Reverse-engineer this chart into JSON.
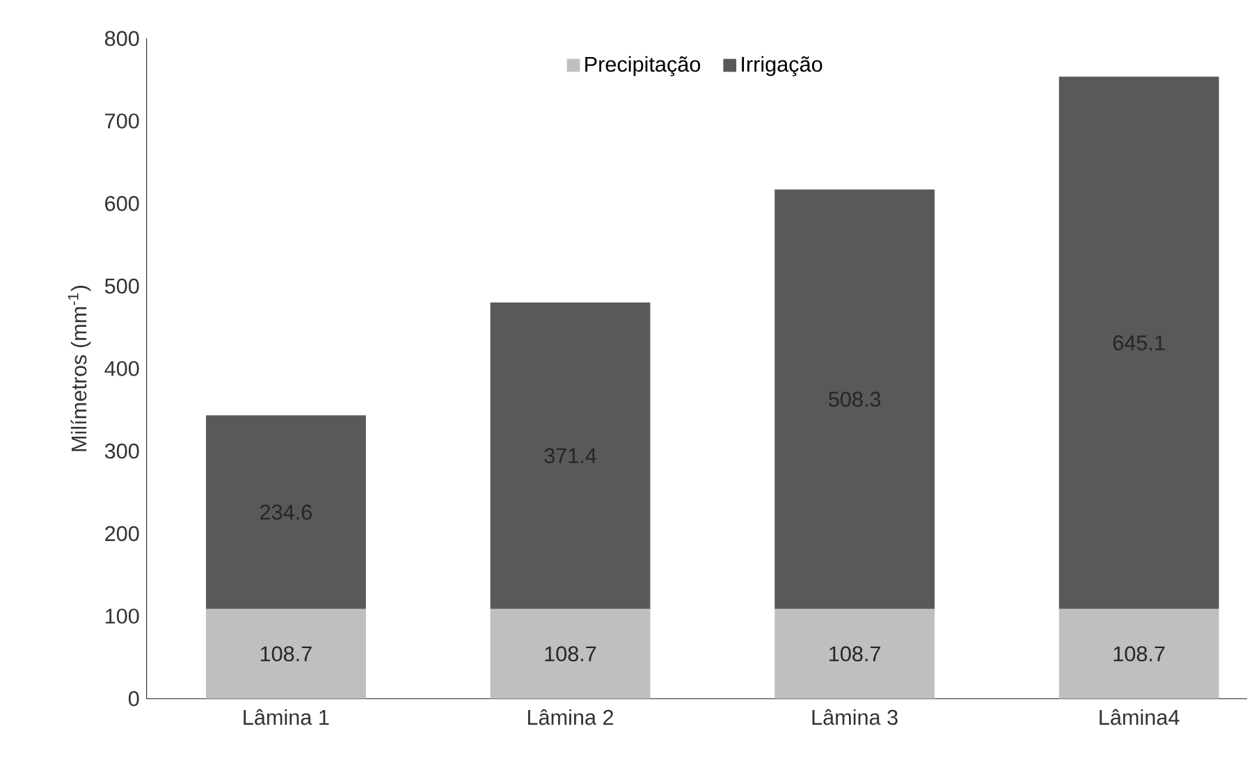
{
  "chart_data": {
    "type": "bar",
    "stacked": true,
    "ylabel": "Milímetros (mm$^{-1}$)",
    "categories": [
      "Lâmina 1",
      "Lâmina 2",
      "Lâmina 3",
      "Lâmina4"
    ],
    "series": [
      {
        "name": "Precipitação",
        "color": "#bfbfbf",
        "values": [
          108.7,
          108.7,
          108.7,
          108.7
        ]
      },
      {
        "name": "Irrigação",
        "color": "#595959",
        "values": [
          234.6,
          371.4,
          508.3,
          645.1
        ]
      }
    ],
    "ylim": [
      0,
      800
    ],
    "yticks": [
      0,
      100,
      200,
      300,
      400,
      500,
      600,
      700,
      800
    ],
    "data_labels": true,
    "legend": "top",
    "grid": false
  }
}
